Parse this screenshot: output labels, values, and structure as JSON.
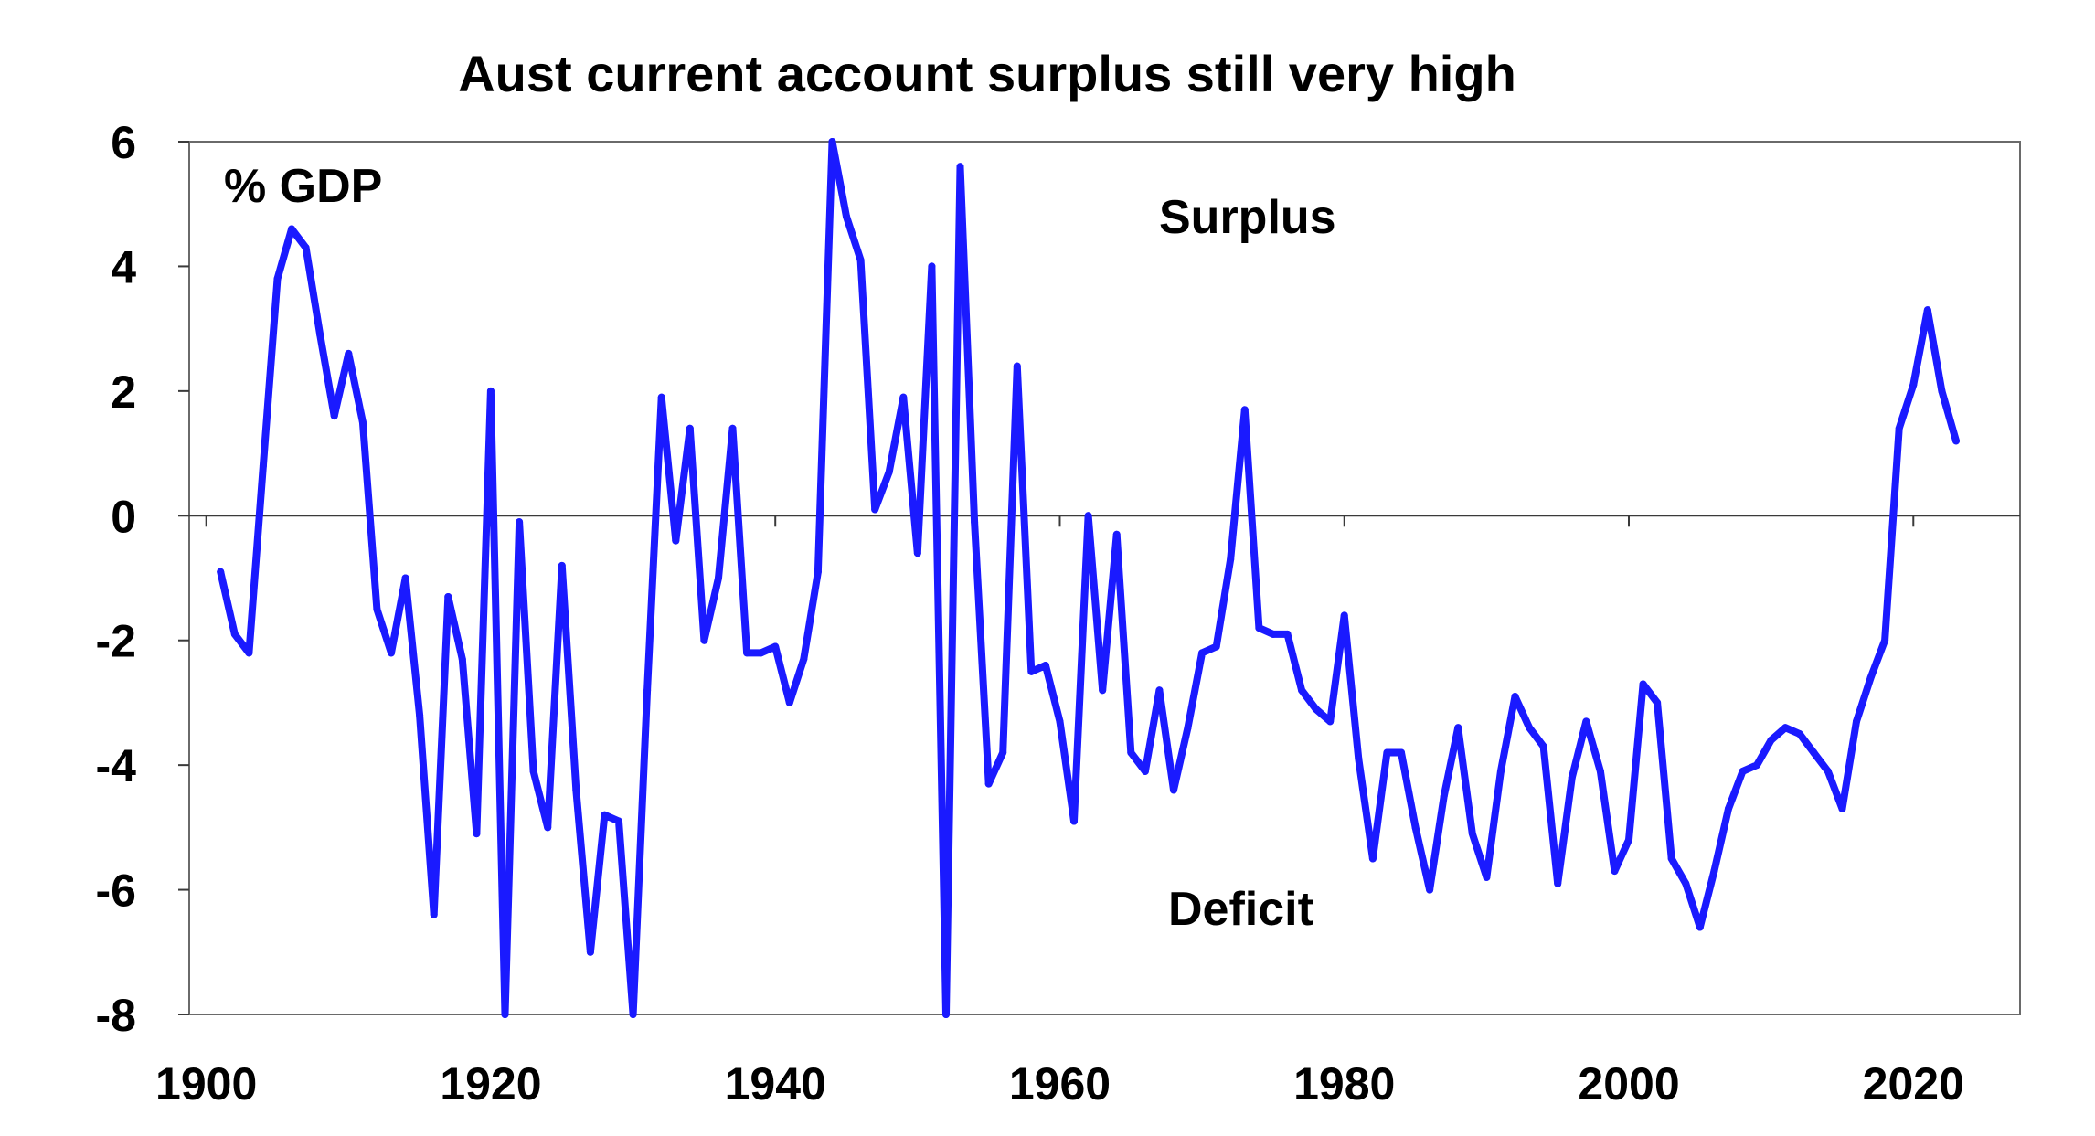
{
  "chart_data": {
    "type": "line",
    "title": "Aust current account surplus still very high",
    "ylabel": "% GDP",
    "xlabel": "",
    "xlim": [
      1900,
      2025
    ],
    "ylim": [
      -8,
      6
    ],
    "x_ticks": [
      1900,
      1920,
      1940,
      1960,
      1980,
      2000,
      2020
    ],
    "y_ticks": [
      6,
      4,
      2,
      0,
      -2,
      -4,
      -6,
      -8
    ],
    "x_tick_labels": [
      "1900",
      "1920",
      "1940",
      "1960",
      "1980",
      "2000",
      "2020"
    ],
    "y_tick_labels": [
      "6",
      "4",
      "2",
      "0",
      "-2",
      "-4",
      "-6",
      "-8"
    ],
    "grid": false,
    "annotations": [
      "Surplus",
      "Deficit"
    ],
    "line_color": "#1a1aff",
    "series": [
      {
        "x": [
          1901,
          1902,
          1903,
          1904,
          1905,
          1906,
          1907,
          1908,
          1909,
          1910,
          1911,
          1912,
          1913,
          1914,
          1915,
          1916,
          1917,
          1918,
          1919,
          1920,
          1921,
          1922,
          1923,
          1924,
          1925,
          1926,
          1927,
          1928,
          1929,
          1930,
          1931,
          1932,
          1933,
          1934,
          1935,
          1936,
          1937,
          1938,
          1939,
          1940,
          1941,
          1942,
          1943,
          1944,
          1945,
          1946,
          1947,
          1948,
          1949,
          1950,
          1951,
          1952,
          1953,
          1954,
          1955,
          1956,
          1957,
          1958,
          1959,
          1960,
          1961,
          1962,
          1963,
          1964,
          1965,
          1966,
          1967,
          1968,
          1969,
          1970,
          1971,
          1972,
          1973,
          1974,
          1975,
          1976,
          1977,
          1978,
          1979,
          1980,
          1981,
          1982,
          1983,
          1984,
          1985,
          1986,
          1987,
          1988,
          1989,
          1990,
          1991,
          1992,
          1993,
          1994,
          1995,
          1996,
          1997,
          1998,
          1999,
          2000,
          2001,
          2002,
          2003,
          2004,
          2005,
          2006,
          2007,
          2008,
          2009,
          2010,
          2011,
          2012,
          2013,
          2014,
          2015,
          2016,
          2017,
          2018,
          2019,
          2020,
          2021,
          2022,
          2023
        ],
        "values": [
          -0.9,
          -1.9,
          -2.2,
          0.8,
          3.8,
          4.6,
          4.3,
          2.9,
          1.6,
          2.6,
          1.5,
          -1.5,
          -2.2,
          -1.0,
          -3.2,
          -6.4,
          -1.3,
          -2.3,
          -5.1,
          2.0,
          -8.0,
          -0.1,
          -4.1,
          -5.0,
          -0.8,
          -4.4,
          -7.0,
          -4.8,
          -4.9,
          -8.0,
          -2.8,
          1.9,
          -0.4,
          1.4,
          -2.0,
          -1.0,
          1.4,
          -2.2,
          -2.2,
          -2.1,
          -3.0,
          -2.3,
          -0.9,
          6.0,
          4.8,
          4.1,
          0.1,
          0.7,
          1.9,
          -0.6,
          4.0,
          -8.0,
          5.6,
          -0.1,
          -4.3,
          -3.8,
          2.4,
          -2.5,
          -2.4,
          -3.3,
          -4.9,
          0.0,
          -2.8,
          -0.3,
          -3.8,
          -4.1,
          -2.8,
          -4.4,
          -3.4,
          -2.2,
          -2.1,
          -0.7,
          1.7,
          -1.8,
          -1.9,
          -1.9,
          -2.8,
          -3.1,
          -3.3,
          -1.6,
          -3.9,
          -5.5,
          -3.8,
          -3.8,
          -5.0,
          -6.0,
          -4.5,
          -3.4,
          -5.1,
          -5.8,
          -4.1,
          -2.9,
          -3.4,
          -3.7,
          -5.9,
          -4.2,
          -3.3,
          -4.1,
          -5.7,
          -5.2,
          -2.7,
          -3.0,
          -5.5,
          -5.9,
          -6.6,
          -5.7,
          -4.7,
          -4.1,
          -4.0,
          -3.6,
          -3.4,
          -3.5,
          -3.8,
          -4.1,
          -4.7,
          -3.3,
          -2.6,
          -2.0,
          1.4,
          2.1,
          3.3,
          2.0,
          1.2
        ]
      }
    ]
  }
}
